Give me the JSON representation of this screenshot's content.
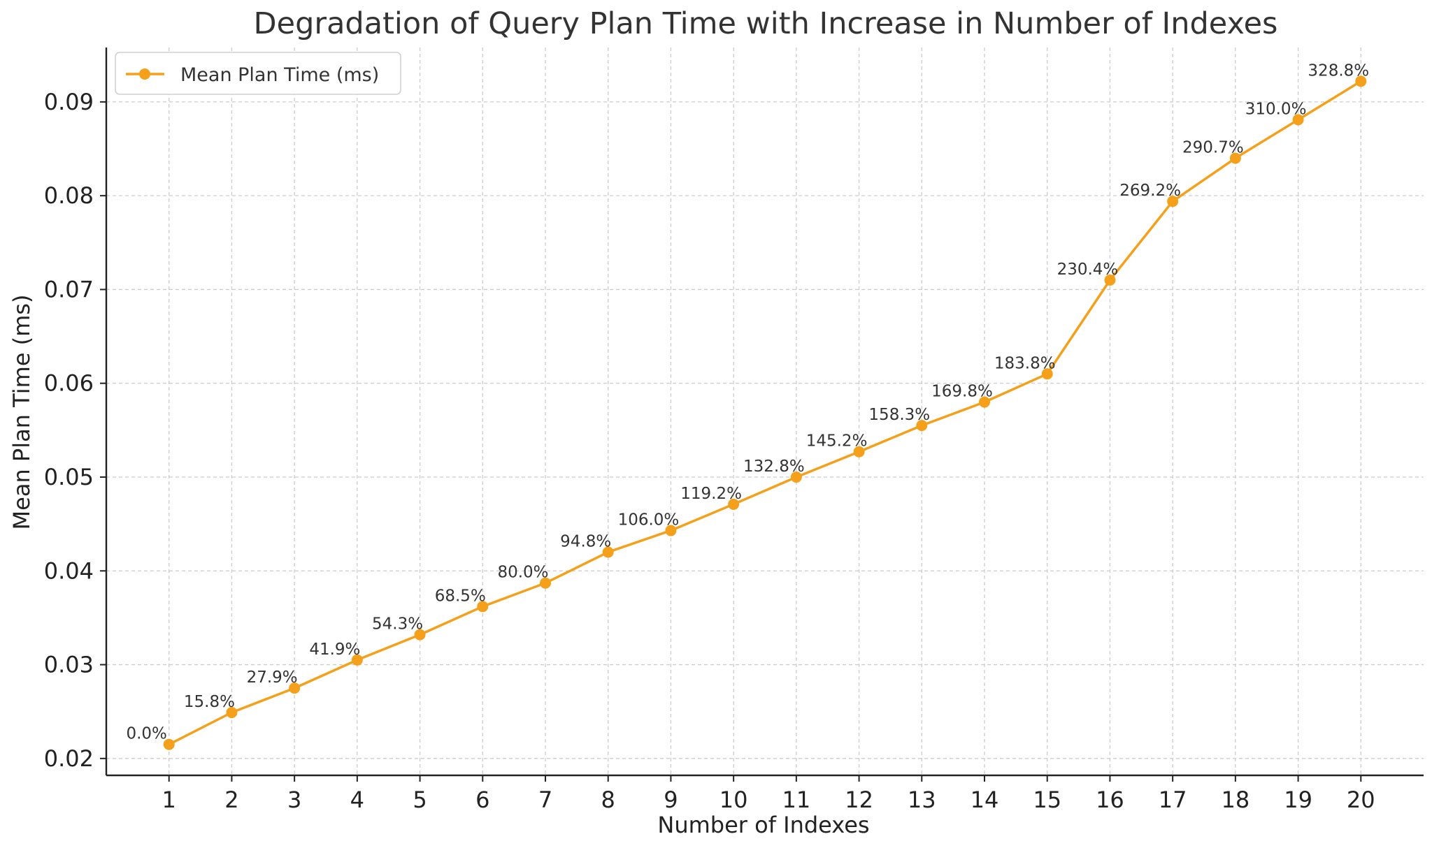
{
  "chart_data": {
    "type": "line",
    "title": "Degradation of Query Plan Time with Increase in Number of Indexes",
    "xlabel": "Number of Indexes",
    "ylabel": "Mean Plan Time (ms)",
    "x": [
      1,
      2,
      3,
      4,
      5,
      6,
      7,
      8,
      9,
      10,
      11,
      12,
      13,
      14,
      15,
      16,
      17,
      18,
      19,
      20
    ],
    "xlim": [
      0.0,
      21.0
    ],
    "ylim": [
      0.0182,
      0.0958
    ],
    "yticks": [
      0.02,
      0.03,
      0.04,
      0.05,
      0.06,
      0.07,
      0.08,
      0.09
    ],
    "ytick_labels": [
      "0.02",
      "0.03",
      "0.04",
      "0.05",
      "0.06",
      "0.07",
      "0.08",
      "0.09"
    ],
    "grid": true,
    "legend_position": "top-left",
    "color": "#f5a01a",
    "series": [
      {
        "name": "Mean Plan Time (ms)",
        "values": [
          0.0215,
          0.0249,
          0.0275,
          0.0305,
          0.0332,
          0.0362,
          0.0387,
          0.042,
          0.0443,
          0.0471,
          0.05,
          0.0527,
          0.0555,
          0.058,
          0.061,
          0.071,
          0.0794,
          0.084,
          0.0881,
          0.0922
        ]
      }
    ],
    "annotations": [
      "0.0%",
      "15.8%",
      "27.9%",
      "41.9%",
      "54.3%",
      "68.5%",
      "80.0%",
      "94.8%",
      "106.0%",
      "119.2%",
      "132.8%",
      "145.2%",
      "158.3%",
      "169.8%",
      "183.8%",
      "230.4%",
      "269.2%",
      "290.7%",
      "310.0%",
      "328.8%"
    ]
  }
}
